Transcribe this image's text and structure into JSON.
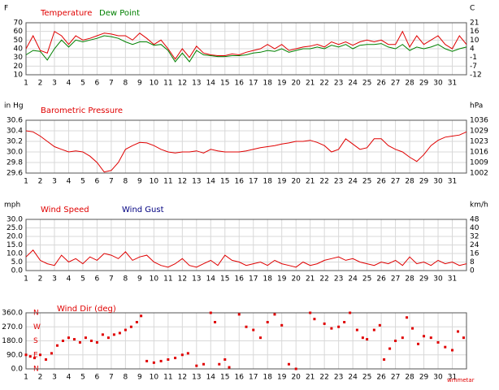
{
  "chart_data": [
    {
      "type": "line",
      "ylabel": "F",
      "y2label": "C",
      "x": [
        1,
        1.5,
        2,
        2.5,
        3,
        3.5,
        4,
        4.5,
        5,
        5.5,
        6,
        6.5,
        7,
        7.5,
        8,
        8.5,
        9,
        9.5,
        10,
        10.5,
        11,
        11.5,
        12,
        12.5,
        13,
        13.5,
        14,
        14.5,
        15,
        15.5,
        16,
        16.5,
        17,
        17.5,
        18,
        18.5,
        19,
        19.5,
        20,
        20.5,
        21,
        21.5,
        22,
        22.5,
        23,
        23.5,
        24,
        24.5,
        25,
        25.5,
        26,
        26.5,
        27,
        27.5,
        28,
        28.5,
        29,
        29.5,
        30,
        30.5,
        31,
        31.5,
        32
      ],
      "series": [
        {
          "name": "Temperature",
          "color": "#e00000",
          "values": [
            40,
            55,
            38,
            35,
            60,
            55,
            45,
            55,
            50,
            52,
            55,
            58,
            57,
            55,
            55,
            50,
            58,
            52,
            45,
            50,
            40,
            28,
            40,
            30,
            43,
            35,
            33,
            32,
            32,
            34,
            33,
            36,
            38,
            40,
            45,
            40,
            45,
            38,
            40,
            42,
            43,
            45,
            42,
            48,
            45,
            48,
            44,
            48,
            50,
            48,
            50,
            45,
            45,
            60,
            42,
            55,
            45,
            50,
            55,
            45,
            40,
            55,
            45
          ]
        },
        {
          "name": "Dew Point",
          "color": "#008000",
          "values": [
            33,
            38,
            37,
            27,
            40,
            50,
            42,
            50,
            48,
            50,
            52,
            55,
            54,
            52,
            48,
            45,
            48,
            48,
            44,
            45,
            38,
            25,
            35,
            25,
            38,
            33,
            32,
            31,
            31,
            32,
            32,
            33,
            35,
            36,
            38,
            37,
            40,
            36,
            38,
            40,
            40,
            42,
            40,
            44,
            42,
            45,
            40,
            44,
            45,
            45,
            46,
            42,
            40,
            45,
            38,
            42,
            40,
            42,
            45,
            40,
            37,
            40,
            42
          ]
        }
      ],
      "xlim": [
        1,
        32
      ],
      "xticks": [
        1,
        2,
        3,
        4,
        5,
        6,
        7,
        8,
        9,
        10,
        11,
        12,
        13,
        14,
        15,
        16,
        17,
        18,
        19,
        20,
        21,
        22,
        23,
        24,
        25,
        26,
        27,
        28,
        29,
        30,
        31
      ],
      "ylim": [
        10,
        70
      ],
      "yticks": [
        70,
        60,
        50,
        40,
        30,
        20,
        10
      ],
      "y2lim": [
        -12.2,
        21.1
      ],
      "y2ticks": [
        {
          "value": 21.1,
          "label": "21"
        },
        {
          "value": 15.6,
          "label": "16"
        },
        {
          "value": 10,
          "label": "10"
        },
        {
          "value": 4.4,
          "label": "4"
        },
        {
          "value": -1.1,
          "label": "-1"
        },
        {
          "value": -6.7,
          "label": "-7"
        },
        {
          "value": -12.2,
          "label": "-12"
        }
      ],
      "grid": true
    },
    {
      "type": "line",
      "title": "Barometric Pressure",
      "ylabel": "in Hg",
      "y2label": "hPa",
      "color": "#e00000",
      "x": [
        1,
        1.5,
        2,
        2.5,
        3,
        3.5,
        4,
        4.5,
        5,
        5.5,
        6,
        6.5,
        7,
        7.5,
        8,
        8.5,
        9,
        9.5,
        10,
        10.5,
        11,
        11.5,
        12,
        12.5,
        13,
        13.5,
        14,
        14.5,
        15,
        15.5,
        16,
        16.5,
        17,
        17.5,
        18,
        18.5,
        19,
        19.5,
        20,
        20.5,
        21,
        21.5,
        22,
        22.5,
        23,
        23.5,
        24,
        24.5,
        25,
        25.5,
        26,
        26.5,
        27,
        27.5,
        28,
        28.5,
        29,
        29.5,
        30,
        30.5,
        31,
        31.5,
        32
      ],
      "values": [
        30.4,
        30.38,
        30.3,
        30.2,
        30.1,
        30.05,
        30,
        30.02,
        30,
        29.92,
        29.8,
        29.62,
        29.65,
        29.8,
        30.05,
        30.12,
        30.18,
        30.17,
        30.12,
        30.05,
        30,
        29.98,
        30,
        30,
        30.02,
        29.98,
        30.05,
        30.02,
        30,
        30,
        30,
        30.02,
        30.05,
        30.08,
        30.1,
        30.12,
        30.15,
        30.17,
        30.2,
        30.2,
        30.22,
        30.18,
        30.12,
        30,
        30.05,
        30.25,
        30.15,
        30.05,
        30.08,
        30.25,
        30.25,
        30.12,
        30.05,
        30,
        29.9,
        29.82,
        29.95,
        30.12,
        30.22,
        30.28,
        30.3,
        30.32,
        30.38
      ],
      "xlim": [
        1,
        32
      ],
      "xticks": [
        1,
        2,
        3,
        4,
        5,
        6,
        7,
        8,
        9,
        10,
        11,
        12,
        13,
        14,
        15,
        16,
        17,
        18,
        19,
        20,
        21,
        22,
        23,
        24,
        25,
        26,
        27,
        28,
        29,
        30,
        31
      ],
      "ylim": [
        29.6,
        30.6
      ],
      "yticks": [
        30.6,
        30.4,
        30.2,
        {
          "value": 30,
          "label": "30.0"
        },
        29.8,
        29.6
      ],
      "y2lim": [
        1002.4,
        1036.2
      ],
      "y2ticks": [
        {
          "value": 1036.2,
          "label": "1036"
        },
        {
          "value": 1029.5,
          "label": "1029"
        },
        {
          "value": 1022.7,
          "label": "1023"
        },
        {
          "value": 1015.9,
          "label": "1016"
        },
        {
          "value": 1009.1,
          "label": "1009"
        },
        {
          "value": 1002.4,
          "label": "1002"
        }
      ],
      "grid": true
    },
    {
      "type": "line",
      "ylabel": "mph",
      "y2label": "km/h",
      "x": [
        1,
        1.5,
        2,
        2.5,
        3,
        3.5,
        4,
        4.5,
        5,
        5.5,
        6,
        6.5,
        7,
        7.5,
        8,
        8.5,
        9,
        9.5,
        10,
        10.5,
        11,
        11.5,
        12,
        12.5,
        13,
        13.5,
        14,
        14.5,
        15,
        15.5,
        16,
        16.5,
        17,
        17.5,
        18,
        18.5,
        19,
        19.5,
        20,
        20.5,
        21,
        21.5,
        22,
        22.5,
        23,
        23.5,
        24,
        24.5,
        25,
        25.5,
        26,
        26.5,
        27,
        27.5,
        28,
        28.5,
        29,
        29.5,
        30,
        30.5,
        31,
        31.5,
        32
      ],
      "series": [
        {
          "name": "Wind Speed",
          "color": "#e00000",
          "values": [
            8,
            12,
            6,
            4,
            3,
            9,
            5,
            7,
            4,
            8,
            6,
            10,
            9,
            7,
            11,
            6,
            8,
            9,
            5,
            3,
            2,
            4,
            7,
            3,
            2,
            4,
            6,
            3,
            9,
            6,
            5,
            3,
            4,
            5,
            3,
            6,
            4,
            3,
            2,
            5,
            3,
            4,
            6,
            7,
            8,
            6,
            7,
            5,
            4,
            3,
            5,
            4,
            6,
            3,
            8,
            4,
            5,
            3,
            6,
            4,
            5,
            3,
            4
          ]
        },
        {
          "name": "Wind Gust",
          "color": "#000080",
          "values": [
            null,
            null,
            null,
            null,
            null,
            null,
            null,
            null,
            null,
            null,
            null,
            null,
            null,
            null,
            null,
            null,
            null,
            null,
            null,
            null,
            null,
            null,
            null,
            null,
            null,
            null,
            null,
            null,
            null,
            null,
            null,
            null,
            null,
            null,
            null,
            null,
            null,
            null,
            null,
            null,
            null,
            null,
            null,
            null,
            null,
            null,
            null,
            null,
            null,
            null,
            null,
            null,
            null,
            null,
            null,
            null,
            null,
            null,
            null,
            null,
            null,
            null,
            null
          ]
        }
      ],
      "xlim": [
        1,
        32
      ],
      "xticks": [
        1,
        2,
        3,
        4,
        5,
        6,
        7,
        8,
        9,
        10,
        11,
        12,
        13,
        14,
        15,
        16,
        17,
        18,
        19,
        20,
        21,
        22,
        23,
        24,
        25,
        26,
        27,
        28,
        29,
        30,
        31
      ],
      "ylim": [
        0,
        30
      ],
      "yticks": [
        {
          "value": 30,
          "label": "30.0"
        },
        {
          "value": 25,
          "label": "25.0"
        },
        {
          "value": 20,
          "label": "20.0"
        },
        {
          "value": 15,
          "label": "15.0"
        },
        {
          "value": 10,
          "label": "10.0"
        },
        {
          "value": 5,
          "label": "5.0"
        },
        {
          "value": 0,
          "label": "0.0"
        }
      ],
      "y2lim": [
        0,
        48.3
      ],
      "y2ticks": [
        {
          "value": 48.3,
          "label": "48"
        },
        {
          "value": 40.2,
          "label": "40"
        },
        {
          "value": 32.2,
          "label": "32"
        },
        {
          "value": 24.1,
          "label": "24"
        },
        {
          "value": 16.1,
          "label": "16"
        },
        {
          "value": 8,
          "label": "8"
        },
        0
      ],
      "grid": true
    },
    {
      "type": "scatter",
      "title": "Wind Dir (deg)",
      "color": "#e00000",
      "annotation": "wmmetar",
      "x": [
        1,
        1.3,
        1.6,
        2,
        2.4,
        2.8,
        3.2,
        3.6,
        4,
        4.4,
        4.8,
        5.2,
        5.6,
        6,
        6.4,
        6.8,
        7.2,
        7.6,
        8,
        8.4,
        8.8,
        9.1,
        9.5,
        10,
        10.5,
        11,
        11.5,
        12,
        12.4,
        13,
        13.5,
        14,
        14.3,
        14.6,
        15,
        15.3,
        16,
        16.5,
        17,
        17.5,
        18,
        18.5,
        19,
        19.5,
        20,
        21,
        21.3,
        22,
        22.5,
        23,
        23.4,
        23.8,
        24.3,
        24.7,
        25,
        25.5,
        25.9,
        26.2,
        26.6,
        27,
        27.5,
        27.8,
        28.2,
        28.6,
        29,
        29.5,
        30,
        30.5,
        31,
        31.4,
        31.8
      ],
      "values": [
        90,
        80,
        70,
        90,
        60,
        100,
        150,
        180,
        200,
        190,
        170,
        200,
        180,
        170,
        220,
        200,
        220,
        230,
        250,
        270,
        300,
        340,
        50,
        40,
        50,
        60,
        70,
        90,
        100,
        20,
        30,
        360,
        300,
        30,
        60,
        10,
        350,
        270,
        250,
        200,
        300,
        350,
        280,
        30,
        0,
        360,
        320,
        290,
        260,
        270,
        300,
        360,
        250,
        200,
        190,
        250,
        280,
        60,
        130,
        180,
        200,
        330,
        260,
        160,
        210,
        200,
        170,
        140,
        120,
        240,
        200
      ],
      "xlim": [
        1,
        32
      ],
      "xticks": [
        1,
        2,
        3,
        4,
        5,
        6,
        7,
        8,
        9,
        10,
        11,
        12,
        13,
        14,
        15,
        16,
        17,
        18,
        19,
        20,
        21,
        22,
        23,
        24,
        25,
        26,
        27,
        28,
        29,
        30,
        31
      ],
      "ylim": [
        0,
        360
      ],
      "yticks": [
        {
          "value": 360,
          "label": "360.0"
        },
        {
          "value": 270,
          "label": "270.0"
        },
        {
          "value": 180,
          "label": "180.0"
        },
        {
          "value": 90,
          "label": "90.0"
        },
        {
          "value": 0,
          "label": "0.0"
        }
      ],
      "y2lim": [
        0,
        360
      ],
      "y2ticks": [
        {
          "value": 360,
          "label": "N"
        },
        {
          "value": 270,
          "label": "W"
        },
        {
          "value": 180,
          "label": "S"
        },
        {
          "value": 90,
          "label": "E"
        },
        {
          "value": 0,
          "label": "N"
        }
      ],
      "grid": true
    }
  ]
}
